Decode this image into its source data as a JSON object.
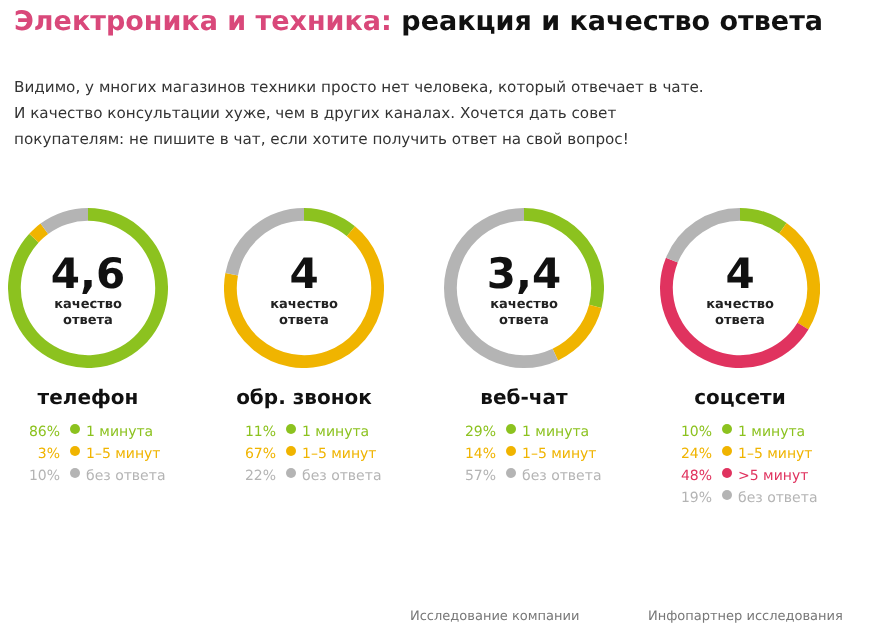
{
  "chart_data": [
    {
      "type": "other",
      "title": "Электроника и техника: реакция и качество ответа",
      "subtitle": "Видимо, у многих магазинов техники просто нет человека, который отвечает в чате.\nИ качество консультации хуже, чем в других каналах. Хочется дать совет\nпокупателям: не пишите в чат, если хотите получить ответ на свой вопрос!",
      "annotations": [
        "Исследование компании",
        "Инфопартнер исследования"
      ]
    },
    {
      "type": "donut",
      "title": "телефон",
      "annotations": [
        "4,6",
        "качество ответа"
      ],
      "categories": [
        "1 минута",
        "1–5 минут",
        "без ответа"
      ],
      "values": [
        86,
        3,
        10
      ],
      "value_labels": [
        "86%",
        "3%",
        "10%"
      ],
      "colors": [
        "#8cc21f",
        "#f0b400",
        "#b4b4b4"
      ],
      "legend": "bottom"
    },
    {
      "type": "donut",
      "title": "обр. звонок",
      "annotations": [
        "4",
        "качество ответа"
      ],
      "categories": [
        "1 минута",
        "1–5 минут",
        "без ответа"
      ],
      "values": [
        11,
        67,
        22
      ],
      "value_labels": [
        "11%",
        "67%",
        "22%"
      ],
      "colors": [
        "#8cc21f",
        "#f0b400",
        "#b4b4b4"
      ],
      "legend": "bottom"
    },
    {
      "type": "donut",
      "title": "веб-чат",
      "annotations": [
        "3,4",
        "качество ответа"
      ],
      "categories": [
        "1 минута",
        "1–5 минут",
        "без ответа"
      ],
      "values": [
        29,
        14,
        57
      ],
      "value_labels": [
        "29%",
        "14%",
        "57%"
      ],
      "colors": [
        "#8cc21f",
        "#f0b400",
        "#b4b4b4"
      ],
      "legend": "bottom"
    },
    {
      "type": "donut",
      "title": "соцсети",
      "annotations": [
        "4",
        "качество ответа"
      ],
      "categories": [
        "1 минута",
        "1–5 минут",
        ">5 минут",
        "без ответа"
      ],
      "values": [
        10,
        24,
        48,
        19
      ],
      "value_labels": [
        "10%",
        "24%",
        "48%",
        "19%"
      ],
      "colors": [
        "#8cc21f",
        "#f0b400",
        "#e0335f",
        "#b4b4b4"
      ],
      "legend": "bottom"
    }
  ]
}
